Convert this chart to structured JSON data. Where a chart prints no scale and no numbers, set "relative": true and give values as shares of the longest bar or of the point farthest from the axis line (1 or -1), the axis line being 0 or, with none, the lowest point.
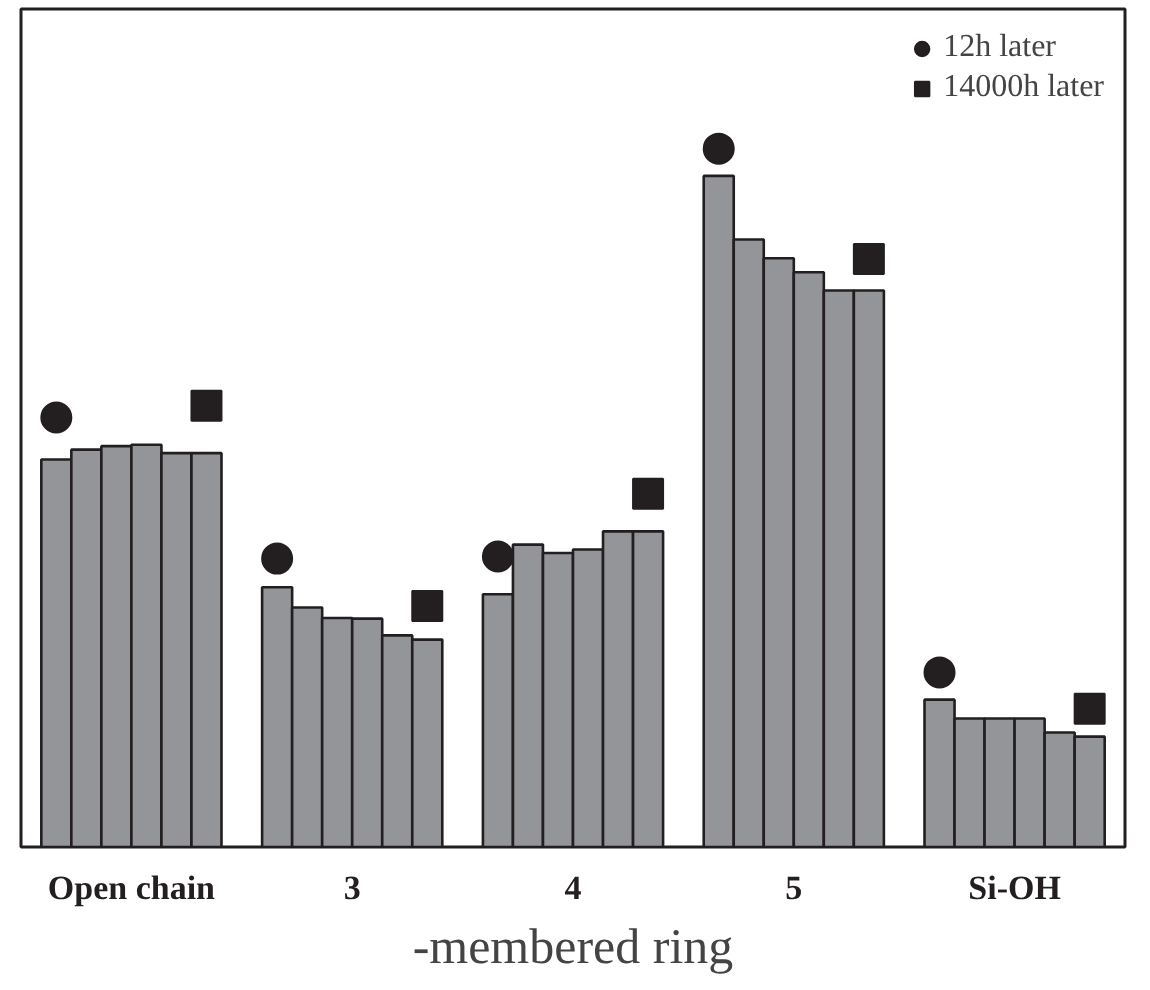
{
  "chart_data": {
    "type": "bar",
    "relative": true,
    "xlabel": "-membered ring",
    "categories": [
      "Open chain",
      "3",
      "4",
      "5",
      "Si-OH"
    ],
    "legend": "top right",
    "grid": false,
    "series": [
      {
        "color": "#939598",
        "values": [
          0.555,
          0.372,
          0.362,
          0.961,
          0.211
        ]
      },
      {
        "color": "#939598",
        "values": [
          0.569,
          0.343,
          0.433,
          0.87,
          0.184
        ]
      },
      {
        "color": "#939598",
        "values": [
          0.574,
          0.328,
          0.421,
          0.843,
          0.184
        ]
      },
      {
        "color": "#939598",
        "values": [
          0.576,
          0.327,
          0.426,
          0.823,
          0.184
        ]
      },
      {
        "color": "#939598",
        "values": [
          0.564,
          0.303,
          0.452,
          0.797,
          0.164
        ]
      },
      {
        "color": "#939598",
        "values": [
          0.564,
          0.297,
          0.452,
          0.797,
          0.158
        ]
      },
      {
        "type": "scatter",
        "marker": "circle",
        "name": "12h later",
        "color": "#231f20",
        "x": [
          "Open chain",
          "3",
          "4",
          "5",
          "Si-OH"
        ],
        "values": [
          0.615,
          0.413,
          0.416,
          1.0,
          0.25
        ]
      },
      {
        "type": "scatter",
        "marker": "square",
        "name": "14000h later",
        "color": "#231f20",
        "x": [
          "Open chain",
          "3",
          "4",
          "5",
          "Si-OH"
        ],
        "values": [
          0.632,
          0.345,
          0.506,
          0.842,
          0.198
        ]
      }
    ]
  }
}
